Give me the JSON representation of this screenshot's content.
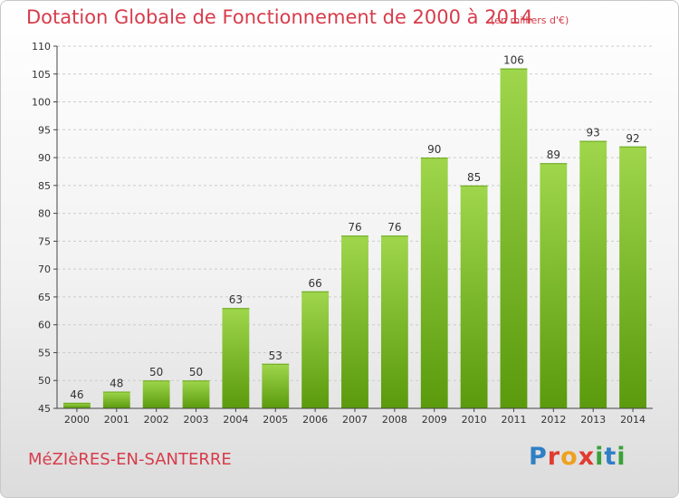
{
  "header": {
    "title": "Dotation Globale de Fonctionnement de 2000 à 2014",
    "unit": "(en milliers d'€)"
  },
  "footer": {
    "commune": "MéZIèRES-EN-SANTERRE",
    "logo": "Proxiti"
  },
  "colors": {
    "bar_light": "#9fd64c",
    "bar_dark": "#5a9a0c",
    "title": "#d73c4b",
    "grid": "#cccccc"
  },
  "chart_data": {
    "type": "bar",
    "categories": [
      "2000",
      "2001",
      "2002",
      "2003",
      "2004",
      "2005",
      "2006",
      "2007",
      "2008",
      "2009",
      "2010",
      "2011",
      "2012",
      "2013",
      "2014"
    ],
    "values": [
      46,
      48,
      50,
      50,
      63,
      53,
      66,
      76,
      76,
      90,
      85,
      106,
      89,
      93,
      92
    ],
    "ylim": [
      45,
      110
    ],
    "yticks": [
      45,
      50,
      55,
      60,
      65,
      70,
      75,
      80,
      85,
      90,
      95,
      100,
      105,
      110
    ],
    "grid": true,
    "data_labels": true,
    "title": "Dotation Globale de Fonctionnement de 2000 à 2014",
    "xlabel": "",
    "ylabel": ""
  }
}
